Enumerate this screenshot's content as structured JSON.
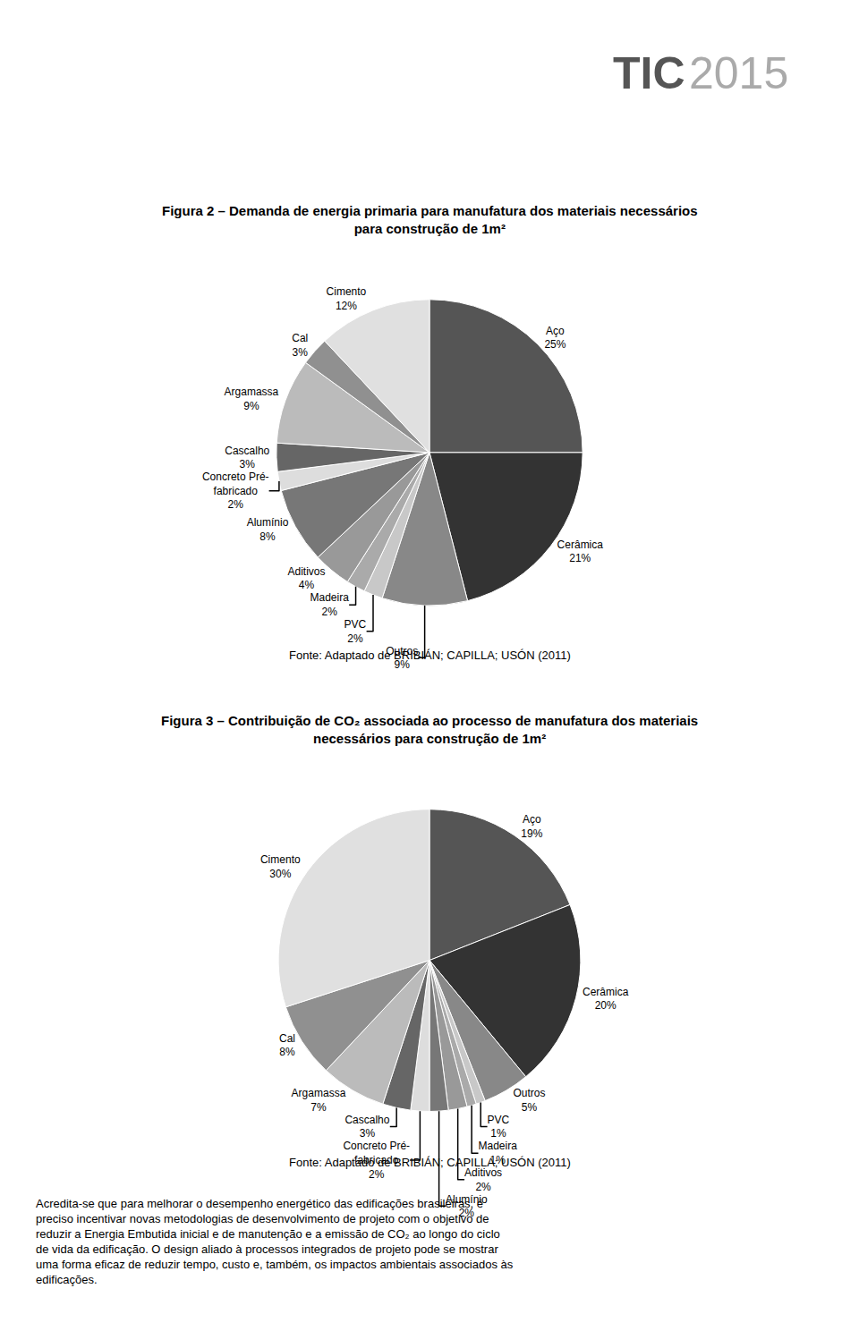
{
  "header": [
    "TIC",
    "2015"
  ],
  "body_text": "Acredita-se que para melhorar o desempenho energético das edificações brasileiras, é\npreciso incentivar novas metodologias de desenvolvimento de projeto com o objetivo de\nreduzir a Energia Embutida inicial e de manutenção e a emissão de CO₂ ao longo do ciclo\nde vida da edificação. O design aliado à processos integrados de projeto pode se mostrar\numa forma eficaz de reduzir tempo, custo e, também, os impactos ambientais associados às\nedificações.",
  "chart_data": [
    {
      "type": "pie",
      "title": "Figura 2 – Demanda de energia primaria para manufatura dos materiais necessários\npara construção de 1m²",
      "categories": [
        "Aço",
        "Cerâmica",
        "Outros",
        "PVC",
        "Madeira",
        "Aditivos",
        "Alumínio",
        "Concreto Pré-\nfabricado",
        "Cascalho",
        "Argamassa",
        "Cal",
        "Cimento"
      ],
      "values": [
        25,
        21,
        9,
        2,
        2,
        4,
        8,
        2,
        3,
        9,
        3,
        12
      ],
      "value_labels": [
        "25%",
        "21%",
        "9%",
        "2%",
        "2%",
        "4%",
        "8%",
        "2%",
        "3%",
        "9%",
        "3%",
        "12%"
      ],
      "colors": [
        "#555555",
        "#333333",
        "#888888",
        "#c8c8c8",
        "#aaaaaa",
        "#999999",
        "#777777",
        "#dddddd",
        "#666666",
        "#bbbbbb",
        "#909090",
        "#e0e0e0"
      ],
      "data_labels": true,
      "annotations": [
        "Fonte: Adaptado de BRIBIÁN; CAPILLA; USÓN (2011)"
      ]
    },
    {
      "type": "pie",
      "title": "Figura 3 – Contribuição de CO₂ associada ao processo de manufatura dos materiais\nnecessários para construção de 1m²",
      "categories": [
        "Aço",
        "Cerâmica",
        "Outros",
        "PVC",
        "Madeira",
        "Aditivos",
        "Alumínio",
        "Concreto Pré-\nfabricado",
        "Cascalho",
        "Argamassa",
        "Cal",
        "Cimento"
      ],
      "values": [
        19,
        20,
        5,
        1,
        1,
        2,
        2,
        2,
        3,
        7,
        8,
        30
      ],
      "value_labels": [
        "19%",
        "20%",
        "5%",
        "1%",
        "1%",
        "2%",
        "2%",
        "2%",
        "3%",
        "7%",
        "8%",
        "30%"
      ],
      "colors": [
        "#555555",
        "#333333",
        "#888888",
        "#c8c8c8",
        "#aaaaaa",
        "#999999",
        "#777777",
        "#dddddd",
        "#666666",
        "#bbbbbb",
        "#909090",
        "#e0e0e0"
      ],
      "data_labels": true,
      "annotations": [
        "Fonte: Adaptado de BRIBIÁN; CAPILLA; USÓN (2011)"
      ]
    }
  ]
}
